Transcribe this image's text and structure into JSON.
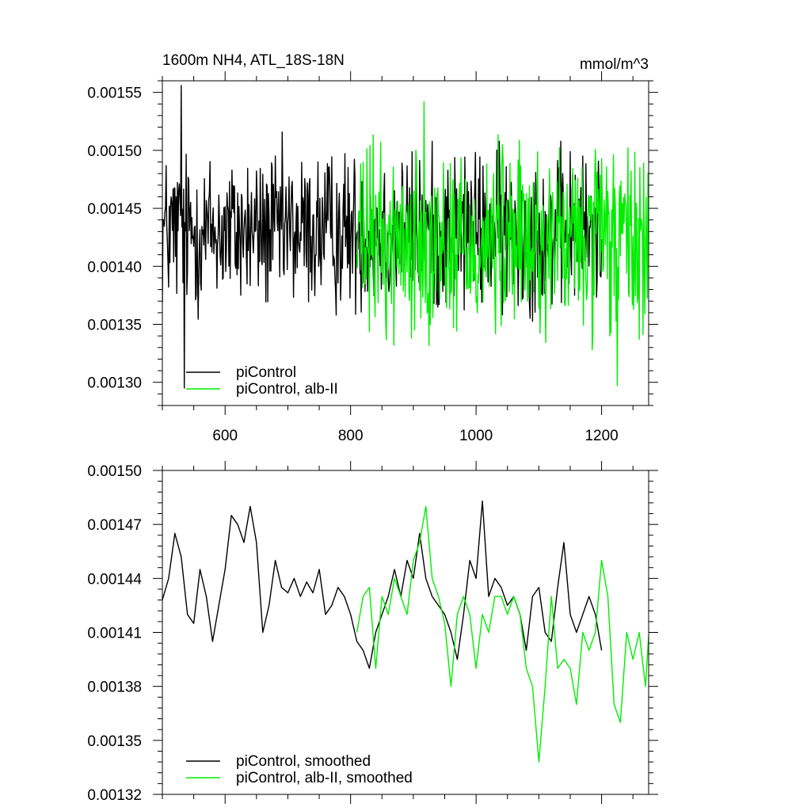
{
  "chart_data": [
    {
      "type": "line",
      "title": "1600m NH4, ATL_18S-18N",
      "units": "mmol/m^3",
      "xlabel": "",
      "ylabel": "",
      "xlim": [
        500,
        1275
      ],
      "ylim": [
        0.00128,
        0.00156
      ],
      "x_ticks": [
        600,
        800,
        1000,
        1200
      ],
      "x_tick_labels": [
        "600",
        "800",
        "1000",
        "1200"
      ],
      "y_ticks": [
        0.0013,
        0.00135,
        0.0014,
        0.00145,
        0.0015,
        0.00155
      ],
      "y_tick_labels": [
        "0.00130",
        "0.00135",
        "0.00140",
        "0.00145",
        "0.00150",
        "0.00155"
      ],
      "grid": false,
      "legend_position": "bottom-left",
      "series": [
        {
          "name": "piControl",
          "color": "#000000",
          "x_start": 500,
          "x_end": 1200,
          "n": 701,
          "mean": 0.00143,
          "amplitude": 5e-05,
          "min": 0.001295,
          "max": 0.001556,
          "min_at": 535,
          "max_at": 530
        },
        {
          "name": "piControl, alb-II",
          "color": "#00ee00",
          "x_start": 810,
          "x_end": 1275,
          "n": 466,
          "mean": 0.00142,
          "amplitude": 6e-05,
          "min": 0.001297,
          "max": 0.001542,
          "min_at": 1225,
          "max_at": 917
        }
      ]
    },
    {
      "type": "line",
      "title": "",
      "units": "",
      "xlabel": "",
      "ylabel": "",
      "xlim": [
        500,
        1275
      ],
      "ylim": [
        0.00132,
        0.0015
      ],
      "x_ticks": [
        600,
        800,
        1000,
        1200
      ],
      "y_ticks": [
        0.00132,
        0.00135,
        0.00138,
        0.00141,
        0.00144,
        0.00147,
        0.0015
      ],
      "y_tick_labels": [
        "0.00132",
        "0.00135",
        "0.00138",
        "0.00141",
        "0.00144",
        "0.00147",
        "0.00150"
      ],
      "grid": false,
      "legend_position": "bottom-left",
      "series": [
        {
          "name": "piControl, smoothed",
          "color": "#000000",
          "x": [
            500,
            510,
            520,
            530,
            540,
            550,
            560,
            570,
            580,
            590,
            600,
            610,
            620,
            630,
            640,
            650,
            660,
            670,
            680,
            690,
            700,
            710,
            720,
            730,
            740,
            750,
            760,
            770,
            780,
            790,
            800,
            810,
            820,
            830,
            840,
            850,
            860,
            870,
            880,
            890,
            900,
            910,
            920,
            930,
            940,
            950,
            960,
            970,
            980,
            990,
            1000,
            1010,
            1020,
            1030,
            1040,
            1050,
            1060,
            1070,
            1080,
            1090,
            1100,
            1110,
            1120,
            1130,
            1140,
            1150,
            1160,
            1170,
            1180,
            1190,
            1200
          ],
          "values": [
            0.001428,
            0.00144,
            0.001465,
            0.001452,
            0.00142,
            0.001415,
            0.001445,
            0.00143,
            0.001405,
            0.001425,
            0.001445,
            0.001475,
            0.00147,
            0.00146,
            0.00148,
            0.00146,
            0.00141,
            0.001425,
            0.00145,
            0.001435,
            0.001432,
            0.00144,
            0.00143,
            0.001438,
            0.001432,
            0.001445,
            0.00142,
            0.001425,
            0.001435,
            0.00143,
            0.00142,
            0.001405,
            0.0014,
            0.00139,
            0.00141,
            0.00142,
            0.00143,
            0.001445,
            0.00143,
            0.00145,
            0.00144,
            0.001465,
            0.00144,
            0.00143,
            0.001425,
            0.00142,
            0.00141,
            0.001395,
            0.00142,
            0.00145,
            0.00144,
            0.001483,
            0.00143,
            0.00144,
            0.001435,
            0.001425,
            0.00143,
            0.00142,
            0.0014,
            0.00143,
            0.001435,
            0.00141,
            0.001405,
            0.001435,
            0.00146,
            0.00142,
            0.00141,
            0.00142,
            0.00143,
            0.00142,
            0.0014
          ]
        },
        {
          "name": "piControl, alb-II, smoothed",
          "color": "#00ee00",
          "x": [
            810,
            820,
            830,
            840,
            850,
            860,
            870,
            880,
            890,
            900,
            910,
            920,
            930,
            940,
            950,
            960,
            970,
            980,
            990,
            1000,
            1010,
            1020,
            1030,
            1040,
            1050,
            1060,
            1070,
            1080,
            1090,
            1100,
            1110,
            1120,
            1130,
            1140,
            1150,
            1160,
            1170,
            1180,
            1190,
            1200,
            1210,
            1220,
            1230,
            1240,
            1250,
            1260,
            1270,
            1275
          ],
          "values": [
            0.00141,
            0.00143,
            0.001435,
            0.00139,
            0.00143,
            0.00142,
            0.00144,
            0.00143,
            0.00142,
            0.00145,
            0.00146,
            0.00148,
            0.00144,
            0.00143,
            0.001415,
            0.00138,
            0.00142,
            0.00143,
            0.00142,
            0.00139,
            0.00142,
            0.00141,
            0.00143,
            0.00143,
            0.00142,
            0.00143,
            0.00142,
            0.00139,
            0.00138,
            0.001338,
            0.00138,
            0.00143,
            0.00139,
            0.001395,
            0.00139,
            0.00137,
            0.00141,
            0.0014,
            0.00141,
            0.00145,
            0.00143,
            0.00137,
            0.00136,
            0.00141,
            0.001395,
            0.00141,
            0.00138,
            0.001408
          ]
        }
      ]
    }
  ]
}
